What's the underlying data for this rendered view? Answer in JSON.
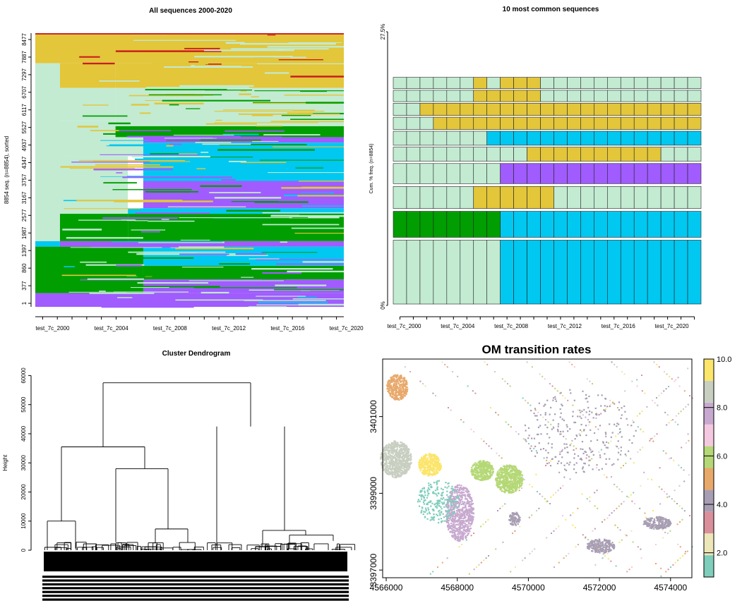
{
  "colors": {
    "state_light": "#c2ebd2",
    "state_yellow": "#e3c63a",
    "state_red": "#c81e1e",
    "state_green": "#009e00",
    "state_blue": "#00c8f0",
    "state_purple": "#a05cff"
  },
  "panels": {
    "seq_index": {
      "title": "All sequences 2000-2020",
      "ylabel": "8854 seq. (n=8854), sorted",
      "ytick_labels": [
        "1",
        "377",
        "860",
        "1397",
        "1987",
        "2577",
        "3167",
        "3757",
        "4347",
        "4937",
        "5527",
        "6117",
        "6707",
        "7297",
        "7887",
        "8477"
      ],
      "xtick_labels": [
        "test_7c_2000",
        "test_7c_2004",
        "test_7c_2008",
        "test_7c_2012",
        "test_7c_2016",
        "test_7c_2020"
      ]
    },
    "freq": {
      "title": "10 most common sequences",
      "ylabel": "Cum. % freq. (n=8854)",
      "ytop_label": "27.5%",
      "ybottom_label": "0%",
      "xtick_labels": [
        "test_7c_2000",
        "test_7c_2004",
        "test_7c_2008",
        "test_7c_2012",
        "test_7c_2016",
        "test_7c_2020"
      ]
    },
    "dendro": {
      "title": "Cluster Dendrogram",
      "ylabel": "Height",
      "ytick_labels": [
        "0",
        "10000",
        "20000",
        "30000",
        "40000",
        "50000",
        "60000"
      ]
    },
    "map": {
      "title": "OM transition rates",
      "xtick_labels": [
        "4566000",
        "4568000",
        "4570000",
        "4572000",
        "4574000"
      ],
      "ytick_labels": [
        "3397000",
        "3399000",
        "3401000"
      ],
      "legend_tick_labels": [
        "2.0",
        "4.0",
        "6.0",
        "8.0",
        "10.0"
      ],
      "legend_colors": [
        "#7fcdbb",
        "#ede6b8",
        "#d9909a",
        "#a89eb3",
        "#e8a86a",
        "#b5d876",
        "#f4c9e0",
        "#c7a9cf",
        "#c8cfc1",
        "#fbe56b"
      ]
    }
  },
  "chart_data": [
    {
      "type": "other",
      "kind": "sequence-index-plot",
      "title": "All sequences 2000-2020",
      "ylabel": "8854 seq. (n=8854), sorted",
      "x": [
        "test_7c_2000",
        "test_7c_2004",
        "test_7c_2008",
        "test_7c_2012",
        "test_7c_2016",
        "test_7c_2020"
      ],
      "n_sequences": 8854,
      "years": [
        2000,
        2020
      ]
    },
    {
      "type": "bar",
      "kind": "sequence-frequency-plot",
      "title": "10 most common sequences",
      "ylabel": "Cum. % freq. (n=8854)",
      "ylim": [
        0,
        27.5
      ],
      "x": [
        "test_7c_2000",
        "test_7c_2004",
        "test_7c_2008",
        "test_7c_2012",
        "test_7c_2016",
        "test_7c_2020"
      ],
      "n_years": 23,
      "sequences": [
        {
          "freq": 6.7,
          "states": [
            [
              0,
              8,
              "light"
            ],
            [
              8,
              23,
              "blue"
            ]
          ]
        },
        {
          "freq": 2.9,
          "states": [
            [
              0,
              8,
              "green"
            ],
            [
              8,
              23,
              "blue"
            ]
          ]
        },
        {
          "freq": 2.5,
          "states": [
            [
              0,
              6,
              "light"
            ],
            [
              6,
              12,
              "yellow"
            ],
            [
              12,
              23,
              "light"
            ]
          ]
        },
        {
          "freq": 2.3,
          "states": [
            [
              0,
              8,
              "light"
            ],
            [
              8,
              23,
              "purple"
            ]
          ]
        },
        {
          "freq": 1.6,
          "states": [
            [
              0,
              10,
              "light"
            ],
            [
              10,
              20,
              "yellow"
            ],
            [
              20,
              23,
              "light"
            ]
          ]
        },
        {
          "freq": 1.6,
          "states": [
            [
              0,
              7,
              "light"
            ],
            [
              7,
              23,
              "blue"
            ]
          ]
        },
        {
          "freq": 1.4,
          "states": [
            [
              0,
              3,
              "light"
            ],
            [
              3,
              23,
              "yellow"
            ]
          ]
        },
        {
          "freq": 1.4,
          "states": [
            [
              0,
              2,
              "light"
            ],
            [
              2,
              23,
              "yellow"
            ]
          ]
        },
        {
          "freq": 1.3,
          "states": [
            [
              0,
              6,
              "light"
            ],
            [
              6,
              11,
              "yellow"
            ],
            [
              11,
              23,
              "light"
            ]
          ]
        },
        {
          "freq": 1.3,
          "states": [
            [
              0,
              6,
              "light"
            ],
            [
              6,
              7,
              "yellow"
            ],
            [
              7,
              8,
              "light"
            ],
            [
              8,
              11,
              "yellow"
            ],
            [
              11,
              23,
              "light"
            ]
          ]
        }
      ]
    },
    {
      "type": "other",
      "kind": "dendrogram",
      "title": "Cluster Dendrogram",
      "ylabel": "Height",
      "ylim": [
        0,
        63000
      ],
      "merges": [
        {
          "height": 57500,
          "children": [
            "A",
            "B"
          ]
        },
        {
          "height": 35500,
          "children": [
            "A1",
            "A2"
          ],
          "id": "A"
        },
        {
          "height": 10000,
          "id": "A1"
        },
        {
          "height": 28000,
          "children": [
            "A2a",
            "A2b"
          ],
          "id": "A2"
        },
        {
          "height": 42500,
          "children": [
            "B1",
            "B2"
          ],
          "id": "B"
        }
      ]
    },
    {
      "type": "heatmap",
      "kind": "raster-map",
      "title": "OM transition rates",
      "xlim": [
        4565900,
        4574600
      ],
      "ylim": [
        3396800,
        3402500
      ],
      "legend_range": [
        1.0,
        10.0
      ],
      "legend_ticks": [
        2.0,
        4.0,
        6.0,
        8.0,
        10.0
      ]
    }
  ]
}
